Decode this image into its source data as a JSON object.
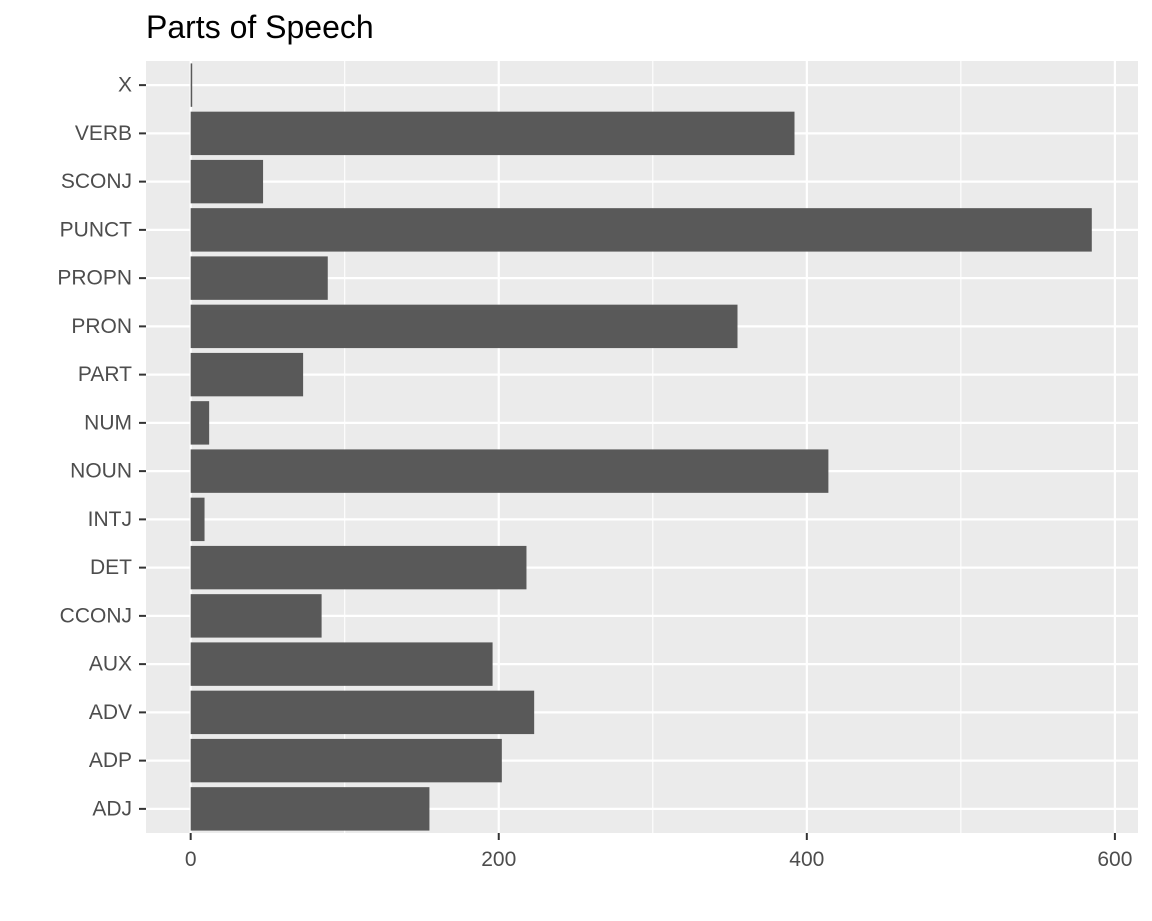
{
  "chart_data": {
    "type": "bar",
    "orientation": "horizontal",
    "title": "Parts of Speech",
    "xlabel": "",
    "ylabel": "",
    "categories": [
      "ADJ",
      "ADP",
      "ADV",
      "AUX",
      "CCONJ",
      "DET",
      "INTJ",
      "NOUN",
      "NUM",
      "PART",
      "PRON",
      "PROPN",
      "PUNCT",
      "SCONJ",
      "VERB",
      "X"
    ],
    "values": [
      155,
      202,
      223,
      196,
      85,
      218,
      9,
      414,
      12,
      73,
      355,
      89,
      585,
      47,
      392,
      1
    ],
    "xlim": [
      -29,
      615
    ],
    "xticks": [
      0,
      200,
      400,
      600
    ],
    "grid": true,
    "legend": "none",
    "colors": {
      "bar": "#595959",
      "panel": "#ebebeb",
      "gridline": "#ffffff",
      "tick_text": "#4d4d4d",
      "tick_mark": "#333333"
    }
  }
}
